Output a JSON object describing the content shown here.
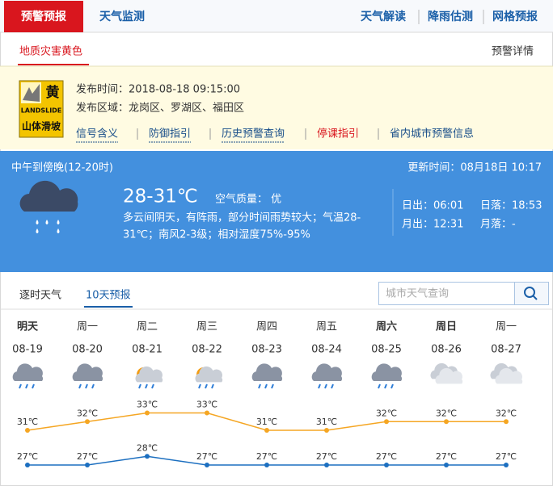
{
  "nav": {
    "tabs": [
      "预警预报",
      "天气监测"
    ],
    "links": [
      "天气解读",
      "降雨估测",
      "网格预报"
    ]
  },
  "warning": {
    "title": "地质灾害黄色",
    "detail_link": "预警详情",
    "icon": {
      "level": "黄",
      "type_en": "LANDSLIDE",
      "type": "山体滑坡"
    },
    "time": "发布时间：2018-08-18 09:15:00",
    "area": "发布区域：龙岗区、罗湖区、福田区",
    "links": [
      "信号含义",
      "防御指引",
      "历史预警查询",
      "停课指引",
      "省内城市预警信息"
    ]
  },
  "current": {
    "period": "中午到傍晚(12-20时)",
    "update": "更新时间：08月18日 10:17",
    "temperature": "28-31℃",
    "air": "空气质量：  优",
    "description": [
      "多云间阴天，有阵雨，部分时间雨势较大；气温28-",
      "31℃；南风2-3级；相对湿度75%-95%"
    ],
    "sunrise": "日出：06:01",
    "sunset": "日落：18:53",
    "moonrise": "月出：12:31",
    "moonset": "月落：-"
  },
  "forecast": {
    "tabs": [
      "逐时天气",
      "10天预报"
    ],
    "search_placeholder": "城市天气查询",
    "days": [
      "明天",
      "周一",
      "周二",
      "周三",
      "周四",
      "周五",
      "周六",
      "周日",
      "周一"
    ],
    "dates": [
      "08-19",
      "08-20",
      "08-21",
      "08-22",
      "08-23",
      "08-24",
      "08-25",
      "08-26",
      "08-27"
    ],
    "high": {
      "values": [
        31,
        32,
        33,
        33,
        31,
        31,
        32,
        32,
        32
      ],
      "value_labels": [
        "31℃",
        "32℃",
        "33℃",
        "33℃",
        "31℃",
        "31℃",
        "32℃",
        "32℃",
        "32℃"
      ],
      "color": "#f5a623"
    },
    "low": {
      "values": [
        27,
        27,
        28,
        27,
        27,
        27,
        27,
        27,
        27
      ],
      "value_labels": [
        "27℃",
        "27℃",
        "28℃",
        "27℃",
        "27℃",
        "27℃",
        "27℃",
        "27℃",
        "27℃"
      ],
      "color": "#1c6fc0"
    }
  }
}
